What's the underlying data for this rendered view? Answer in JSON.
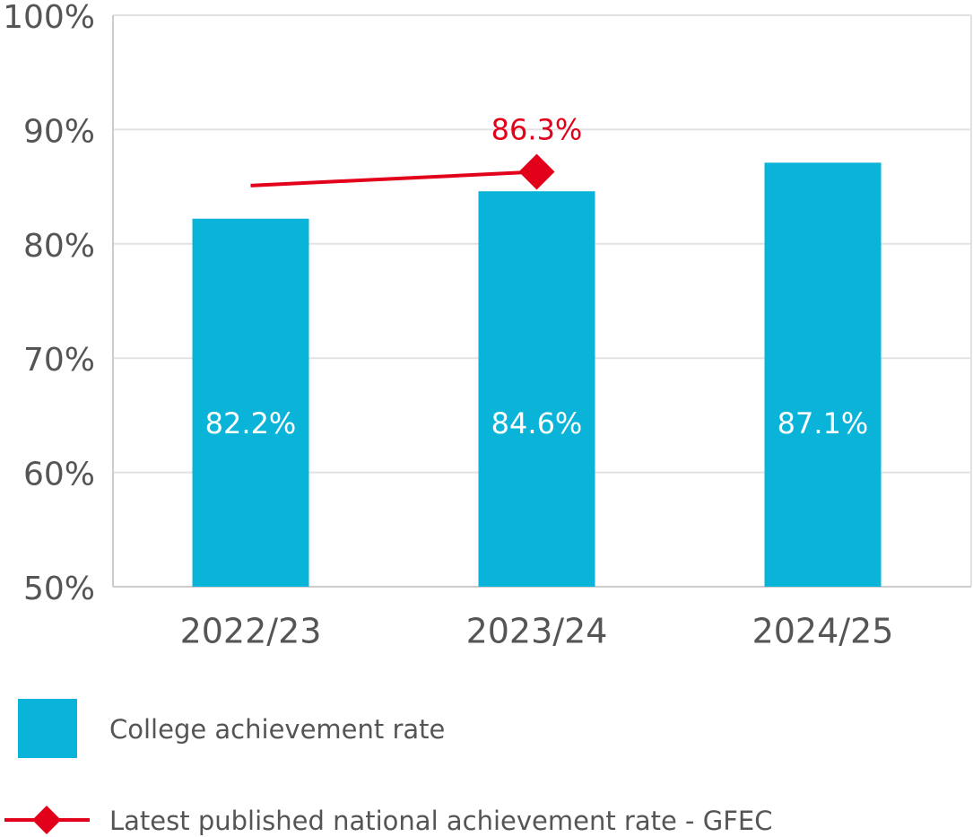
{
  "chart_data": {
    "type": "bar",
    "categories": [
      "2022/23",
      "2023/24",
      "2024/25"
    ],
    "series": [
      {
        "name": "College achievement rate",
        "type": "bar",
        "color": "#0ab4d9",
        "values": [
          82.2,
          84.6,
          87.1
        ],
        "value_labels": [
          "82.2%",
          "84.6%",
          "87.1%"
        ]
      },
      {
        "name": "Latest published national achievement rate - GFEC",
        "type": "line",
        "color": "#e2001a",
        "values": [
          85.1,
          86.3,
          null
        ],
        "value_labels": [
          null,
          "86.3%",
          null
        ]
      }
    ],
    "ylim": [
      50,
      100
    ],
    "yticks": [
      {
        "value": 50,
        "label": "50%"
      },
      {
        "value": 60,
        "label": "60%"
      },
      {
        "value": 70,
        "label": "70%"
      },
      {
        "value": 80,
        "label": "80%"
      },
      {
        "value": 90,
        "label": "90%"
      },
      {
        "value": 100,
        "label": "100%"
      }
    ],
    "grid": true
  }
}
